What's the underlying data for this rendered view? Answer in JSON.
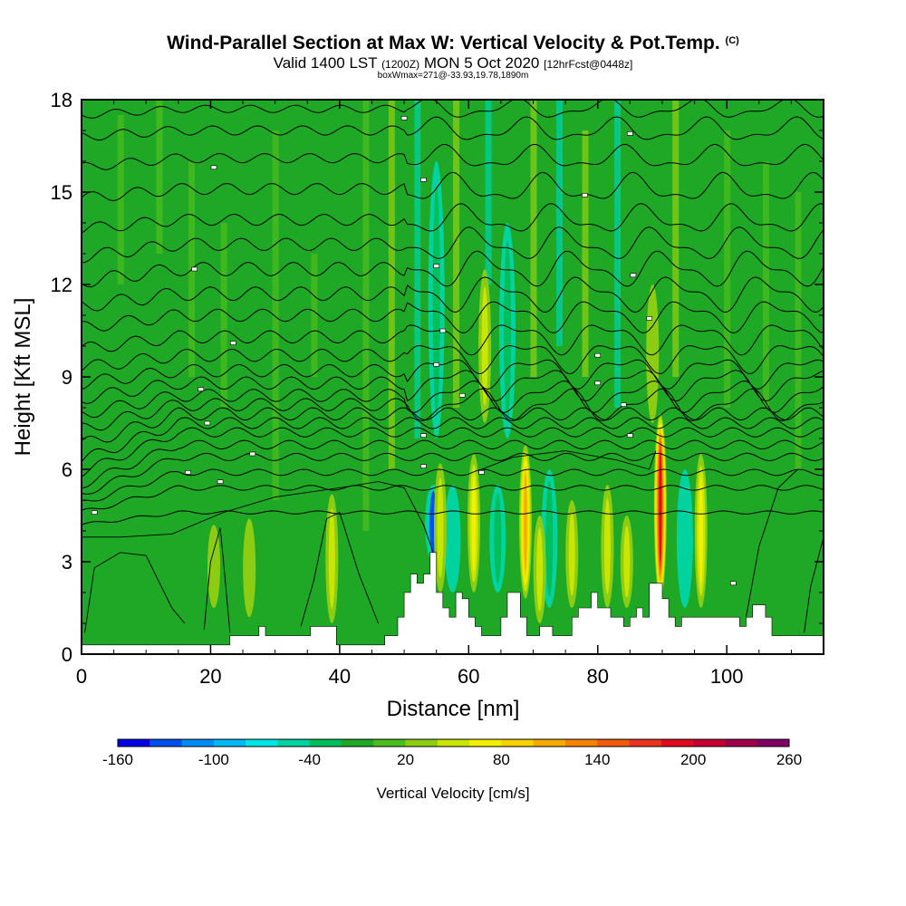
{
  "chart_data": {
    "type": "heatmap",
    "title": "Wind-Parallel Section at Max W: Vertical Velocity & Pot.Temp.",
    "title_mark": "(C)",
    "subtitle_parts": [
      "Valid 1400 LST",
      "(1200Z)",
      "MON 5 Oct 2020",
      "[12hrFcst@0448z]"
    ],
    "annotation": "boxWmax=271@-33.93,19.78,1890m",
    "xlabel": "Distance [nm]",
    "ylabel": "Height [Kft MSL]",
    "xlim": [
      0,
      115
    ],
    "ylim": [
      0,
      18
    ],
    "x_ticks": [
      0,
      20,
      40,
      60,
      80,
      100
    ],
    "y_ticks": [
      0,
      3,
      6,
      9,
      12,
      15,
      18
    ],
    "colorbar": {
      "label": "Vertical Velocity [cm/s]",
      "tick_labels": [
        "-160",
        "-100",
        "-40",
        "20",
        "80",
        "140",
        "200",
        "260"
      ],
      "colors": [
        "#0000e6",
        "#0050f0",
        "#008cf5",
        "#00b9f5",
        "#00e6e6",
        "#00d2a0",
        "#00be5a",
        "#1ea826",
        "#4bbe1e",
        "#8ccd14",
        "#c8e600",
        "#f0f000",
        "#f5d200",
        "#f5aa00",
        "#f58200",
        "#f05a0a",
        "#eb321e",
        "#e10a1e",
        "#c80032",
        "#a0004b",
        "#820064"
      ]
    },
    "updrafts": [
      {
        "x": 20.5,
        "bottom": 1.5,
        "top": 4.2,
        "w": 30
      },
      {
        "x": 26,
        "bottom": 1.2,
        "top": 4.4,
        "w": 25
      },
      {
        "x": 38.8,
        "bottom": 1.0,
        "top": 5.2,
        "w": 40
      },
      {
        "x": 55.6,
        "bottom": 2.0,
        "top": 6.2,
        "w": 50
      },
      {
        "x": 60.8,
        "bottom": 2.0,
        "top": 6.5,
        "w": 70
      },
      {
        "x": 62.5,
        "bottom": 7.5,
        "top": 12.5,
        "w": 40
      },
      {
        "x": 68.8,
        "bottom": 1.8,
        "top": 6.8,
        "w": 120
      },
      {
        "x": 71,
        "bottom": 1.0,
        "top": 4.5,
        "w": 40
      },
      {
        "x": 76,
        "bottom": 1.5,
        "top": 5.0,
        "w": 45
      },
      {
        "x": 81.5,
        "bottom": 1.5,
        "top": 5.5,
        "w": 50
      },
      {
        "x": 84.5,
        "bottom": 1.5,
        "top": 4.5,
        "w": 40
      },
      {
        "x": 89.7,
        "bottom": 1.8,
        "top": 7.8,
        "w": 220
      },
      {
        "x": 96,
        "bottom": 1.5,
        "top": 6.5,
        "w": 80
      },
      {
        "x": 88.5,
        "bottom": 7.5,
        "top": 12.0,
        "w": 35
      }
    ],
    "downdrafts": [
      {
        "x": 54.5,
        "bottom": 3.0,
        "top": 5.5,
        "w": -160
      },
      {
        "x": 57.5,
        "bottom": 2.0,
        "top": 5.5,
        "w": -60
      },
      {
        "x": 64.5,
        "bottom": 2.0,
        "top": 5.5,
        "w": -40
      },
      {
        "x": 93.5,
        "bottom": 1.5,
        "top": 6.0,
        "w": -60
      },
      {
        "x": 72.5,
        "bottom": 1.5,
        "top": 6.0,
        "w": -40
      },
      {
        "x": 55,
        "bottom": 7.0,
        "top": 16.0,
        "w": -40
      },
      {
        "x": 66,
        "bottom": 7.0,
        "top": 14.0,
        "w": -40
      }
    ],
    "terrain": [
      [
        0,
        0.3
      ],
      [
        23,
        0.3
      ],
      [
        23,
        0.6
      ],
      [
        27.5,
        0.6
      ],
      [
        27.5,
        0.9
      ],
      [
        28.5,
        0.9
      ],
      [
        28.5,
        0.6
      ],
      [
        35.5,
        0.6
      ],
      [
        35.5,
        0.9
      ],
      [
        39.5,
        0.9
      ],
      [
        39.5,
        0.3
      ],
      [
        47,
        0.3
      ],
      [
        47,
        0.6
      ],
      [
        49,
        0.6
      ],
      [
        49,
        1.2
      ],
      [
        50,
        1.2
      ],
      [
        50,
        2.0
      ],
      [
        51,
        2.0
      ],
      [
        51,
        2.6
      ],
      [
        52,
        2.6
      ],
      [
        52,
        2.3
      ],
      [
        53,
        2.3
      ],
      [
        53,
        2.6
      ],
      [
        54,
        2.6
      ],
      [
        54,
        3.3
      ],
      [
        55,
        3.3
      ],
      [
        55,
        2.0
      ],
      [
        56,
        2.0
      ],
      [
        56,
        1.5
      ],
      [
        57,
        1.5
      ],
      [
        57,
        1.2
      ],
      [
        58,
        1.2
      ],
      [
        58,
        2.0
      ],
      [
        59,
        2.0
      ],
      [
        59,
        1.8
      ],
      [
        60,
        1.8
      ],
      [
        60,
        1.2
      ],
      [
        61,
        1.2
      ],
      [
        61,
        0.9
      ],
      [
        62,
        0.9
      ],
      [
        62,
        0.6
      ],
      [
        65,
        0.6
      ],
      [
        65,
        1.2
      ],
      [
        66,
        1.2
      ],
      [
        66,
        2.0
      ],
      [
        68,
        2.0
      ],
      [
        68,
        1.2
      ],
      [
        69,
        1.2
      ],
      [
        69,
        0.6
      ],
      [
        71,
        0.6
      ],
      [
        71,
        0.9
      ],
      [
        73,
        0.9
      ],
      [
        73,
        0.6
      ],
      [
        76,
        0.6
      ],
      [
        76,
        1.2
      ],
      [
        77,
        1.2
      ],
      [
        77,
        1.5
      ],
      [
        79,
        1.5
      ],
      [
        79,
        2.0
      ],
      [
        80,
        2.0
      ],
      [
        80,
        1.5
      ],
      [
        82,
        1.5
      ],
      [
        82,
        1.2
      ],
      [
        84,
        1.2
      ],
      [
        84,
        0.9
      ],
      [
        85,
        0.9
      ],
      [
        85,
        1.2
      ],
      [
        86,
        1.2
      ],
      [
        86,
        1.5
      ],
      [
        87,
        1.5
      ],
      [
        87,
        1.2
      ],
      [
        88,
        1.2
      ],
      [
        88,
        2.3
      ],
      [
        90,
        2.3
      ],
      [
        90,
        1.8
      ],
      [
        91,
        1.8
      ],
      [
        91,
        1.2
      ],
      [
        92,
        1.2
      ],
      [
        92,
        0.9
      ],
      [
        93,
        0.9
      ],
      [
        93,
        1.2
      ],
      [
        102,
        1.2
      ],
      [
        102,
        0.9
      ],
      [
        103,
        0.9
      ],
      [
        103,
        1.2
      ],
      [
        104,
        1.2
      ],
      [
        104,
        1.6
      ],
      [
        106,
        1.6
      ],
      [
        106,
        1.2
      ],
      [
        107,
        1.2
      ],
      [
        107,
        0.6
      ],
      [
        115,
        0.6
      ]
    ],
    "theta_levels": [
      {
        "base": 4.2,
        "tilt": 0.4,
        "amp": 0.05
      },
      {
        "base": 4.6,
        "tilt": 0.8,
        "amp": 0.08
      },
      {
        "base": 4.9,
        "tilt": 1.0,
        "amp": 0.1
      },
      {
        "base": 5.2,
        "tilt": 1.2,
        "amp": 0.12
      },
      {
        "base": 5.5,
        "tilt": 1.3,
        "amp": 0.14
      },
      {
        "base": 5.9,
        "tilt": 1.3,
        "amp": 0.15
      },
      {
        "base": 6.3,
        "tilt": 1.2,
        "amp": 0.18
      },
      {
        "base": 6.8,
        "tilt": 1.0,
        "amp": 0.2
      },
      {
        "base": 7.3,
        "tilt": 0.8,
        "amp": 0.2
      },
      {
        "base": 7.8,
        "tilt": 0.6,
        "amp": 0.2
      },
      {
        "base": 8.3,
        "tilt": 0.5,
        "amp": 0.2
      },
      {
        "base": 8.8,
        "tilt": 0.4,
        "amp": 0.2
      },
      {
        "base": 9.3,
        "tilt": 0.4,
        "amp": 0.2
      },
      {
        "base": 9.9,
        "tilt": 0.4,
        "amp": 0.2
      },
      {
        "base": 10.6,
        "tilt": 0.4,
        "amp": 0.2
      },
      {
        "base": 11.3,
        "tilt": 0.4,
        "amp": 0.22
      },
      {
        "base": 12.1,
        "tilt": 0.4,
        "amp": 0.22
      },
      {
        "base": 12.9,
        "tilt": 0.4,
        "amp": 0.2
      },
      {
        "base": 13.8,
        "tilt": 0.3,
        "amp": 0.18
      },
      {
        "base": 14.8,
        "tilt": 0.3,
        "amp": 0.18
      },
      {
        "base": 15.8,
        "tilt": 0.3,
        "amp": 0.15
      },
      {
        "base": 16.8,
        "tilt": 0.2,
        "amp": 0.15
      },
      {
        "base": 17.5,
        "tilt": 0.2,
        "amp": 0.12
      }
    ]
  }
}
